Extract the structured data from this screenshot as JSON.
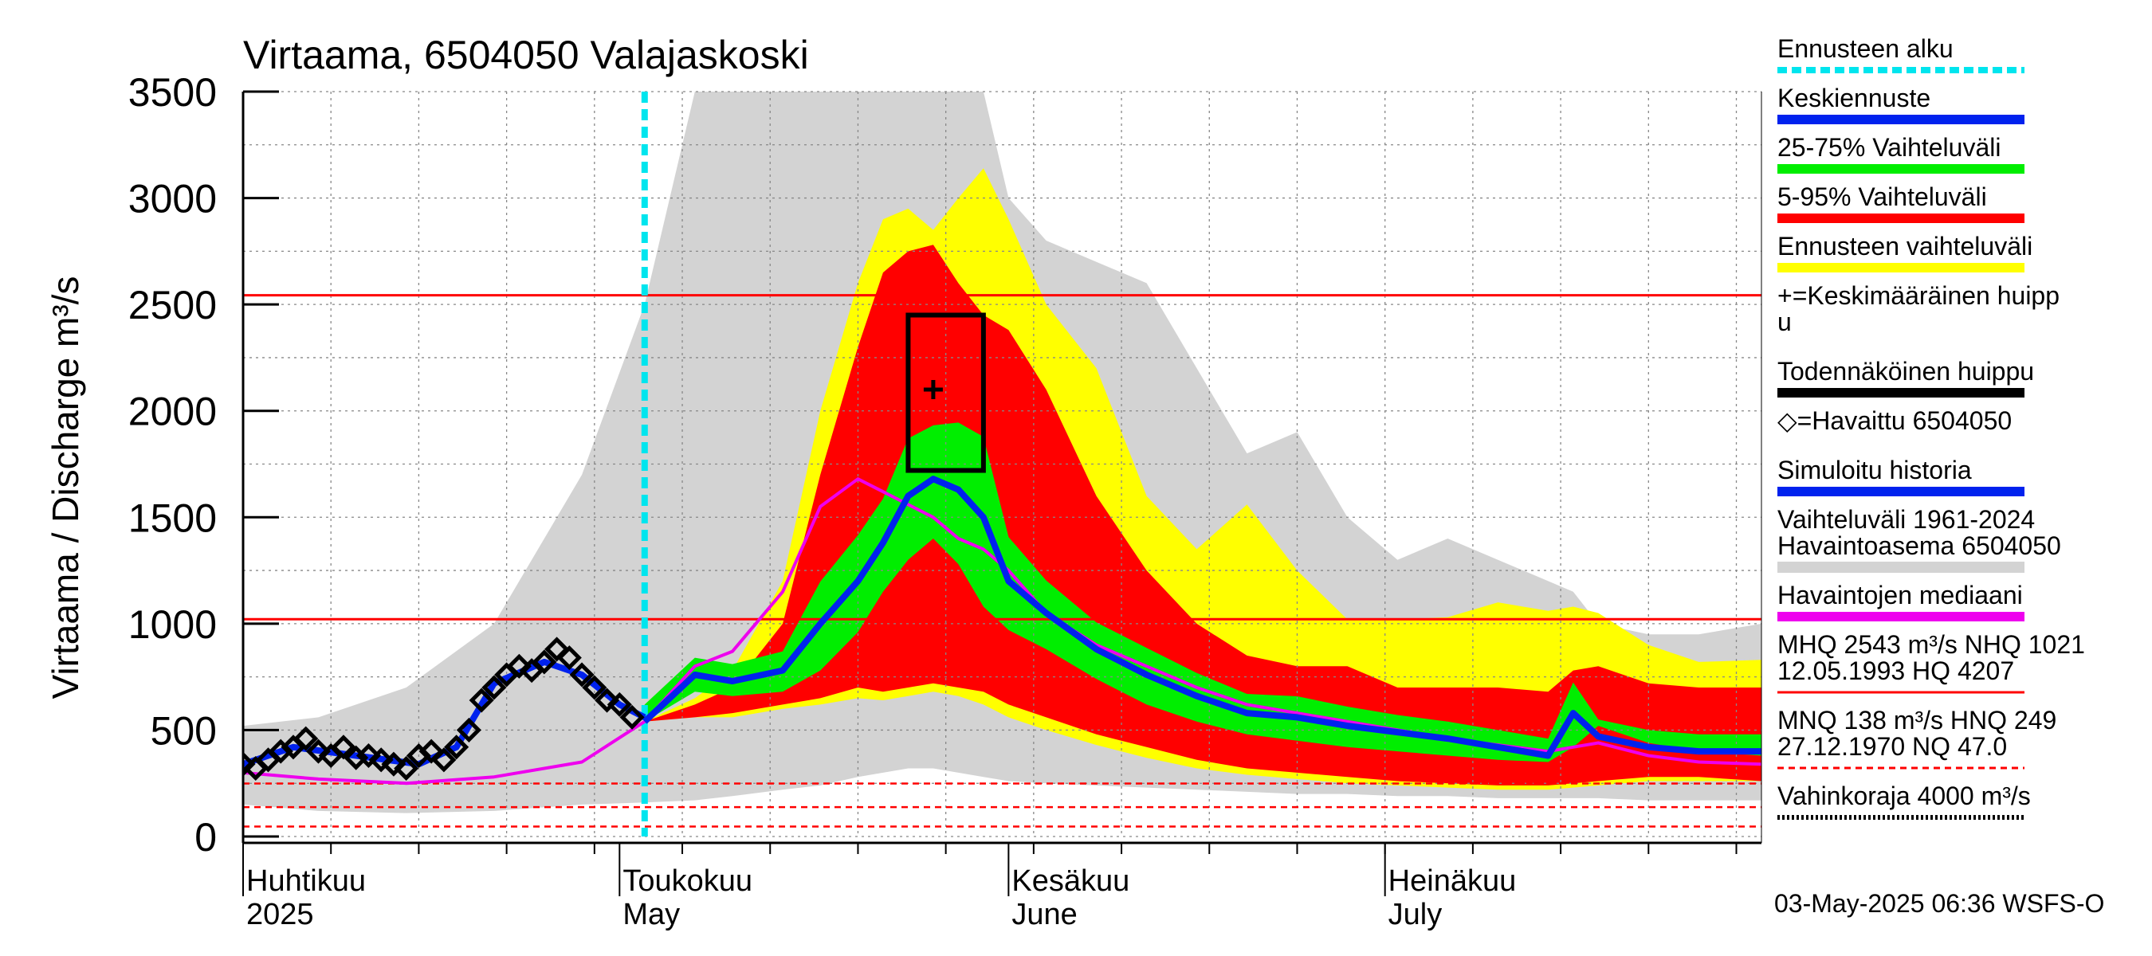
{
  "chart_data": {
    "type": "area",
    "title": "Virtaama, 6504050 Valajaskoski",
    "ylabel": "Virtaama / Discharge   m³/s",
    "ylim": [
      0,
      3500
    ],
    "yticks": [
      0,
      500,
      1000,
      1500,
      2000,
      2500,
      3000,
      3500
    ],
    "x_range": [
      "2025-04-01",
      "2025-07-31"
    ],
    "month_labels": [
      {
        "date": "2025-04-01",
        "fi": "Huhtikuu",
        "en": "2025"
      },
      {
        "date": "2025-05-01",
        "fi": "Toukokuu",
        "en": "May"
      },
      {
        "date": "2025-06-01",
        "fi": "Kesäkuu",
        "en": "June"
      },
      {
        "date": "2025-07-01",
        "fi": "Heinäkuu",
        "en": "July"
      }
    ],
    "grid": true,
    "forecast_start": "2025-05-03",
    "reference_lines": [
      {
        "name": "MHQ",
        "value": 2543,
        "color": "#ff0000",
        "style": "solid"
      },
      {
        "name": "NHQ",
        "value": 1021,
        "color": "#ff0000",
        "style": "solid"
      },
      {
        "name": "HNQ",
        "value": 249,
        "color": "#ff0000",
        "style": "dashed"
      },
      {
        "name": "MNQ",
        "value": 138,
        "color": "#ff0000",
        "style": "dashed"
      },
      {
        "name": "NQ",
        "value": 47,
        "color": "#ff0000",
        "style": "dashed"
      }
    ],
    "probable_peak_box": {
      "date_from": "2025-05-24",
      "date_to": "2025-05-30",
      "low": 1720,
      "high": 2450
    },
    "mean_peak": {
      "date": "2025-05-26",
      "value": 2100
    },
    "x": [
      "2025-04-01",
      "2025-04-07",
      "2025-04-14",
      "2025-04-21",
      "2025-04-28",
      "2025-05-03",
      "2025-05-07",
      "2025-05-10",
      "2025-05-14",
      "2025-05-17",
      "2025-05-20",
      "2025-05-22",
      "2025-05-24",
      "2025-05-26",
      "2025-05-28",
      "2025-05-30",
      "2025-06-01",
      "2025-06-04",
      "2025-06-08",
      "2025-06-12",
      "2025-06-16",
      "2025-06-20",
      "2025-06-24",
      "2025-06-28",
      "2025-07-02",
      "2025-07-06",
      "2025-07-10",
      "2025-07-14",
      "2025-07-16",
      "2025-07-18",
      "2025-07-22",
      "2025-07-26",
      "2025-07-31"
    ],
    "series": [
      {
        "name": "Vaihteluväli 1961-2024 Havaintoasema 6504050",
        "color": "#d3d3d3",
        "role": "band",
        "low": [
          150,
          120,
          110,
          120,
          150,
          160,
          170,
          190,
          220,
          240,
          280,
          300,
          320,
          320,
          300,
          280,
          260,
          250,
          240,
          230,
          220,
          210,
          200,
          200,
          190,
          190,
          180,
          180,
          180,
          180,
          170,
          170,
          170
        ],
        "high": [
          520,
          560,
          700,
          1000,
          1700,
          2500,
          3500,
          3500,
          3500,
          3500,
          3500,
          3500,
          3500,
          3500,
          3500,
          3500,
          3000,
          2800,
          2700,
          2600,
          2200,
          1800,
          1900,
          1500,
          1300,
          1400,
          1300,
          1200,
          1150,
          1000,
          950,
          950,
          1000
        ]
      },
      {
        "name": "Ennusteen vaihteluväli",
        "color": "#ffff00",
        "role": "band",
        "low": [
          null,
          null,
          null,
          null,
          null,
          540,
          560,
          560,
          600,
          620,
          650,
          640,
          660,
          680,
          660,
          620,
          560,
          500,
          430,
          370,
          320,
          290,
          270,
          250,
          240,
          230,
          220,
          220,
          230,
          240,
          260,
          260,
          260
        ],
        "high": [
          null,
          null,
          null,
          null,
          null,
          540,
          650,
          780,
          1200,
          2000,
          2600,
          2900,
          2950,
          2850,
          3000,
          3140,
          2900,
          2500,
          2200,
          1600,
          1350,
          1560,
          1250,
          1020,
          1020,
          1030,
          1100,
          1060,
          1080,
          1050,
          900,
          820,
          830
        ]
      },
      {
        "name": "5-95% Vaihteluväli",
        "color": "#ff0000",
        "role": "band",
        "low": [
          null,
          null,
          null,
          null,
          null,
          540,
          560,
          580,
          620,
          650,
          700,
          680,
          700,
          720,
          700,
          680,
          620,
          560,
          480,
          420,
          360,
          320,
          300,
          280,
          260,
          250,
          240,
          240,
          250,
          260,
          280,
          280,
          260
        ],
        "high": [
          null,
          null,
          null,
          null,
          null,
          540,
          620,
          700,
          1000,
          1700,
          2300,
          2650,
          2750,
          2780,
          2600,
          2450,
          2380,
          2100,
          1600,
          1250,
          1000,
          850,
          800,
          800,
          700,
          700,
          700,
          680,
          780,
          800,
          720,
          700,
          700
        ]
      },
      {
        "name": "25-75% Vaihteluväli",
        "color": "#00ee00",
        "role": "band",
        "low": [
          null,
          null,
          null,
          null,
          null,
          540,
          680,
          660,
          680,
          780,
          960,
          1150,
          1300,
          1400,
          1280,
          1080,
          970,
          880,
          740,
          620,
          540,
          480,
          450,
          420,
          400,
          380,
          360,
          350,
          420,
          520,
          440,
          400,
          380
        ]
      },
      {
        "name": "Keskiennuste",
        "color": "#0022ee",
        "role": "line",
        "values": [
          null,
          null,
          null,
          null,
          null,
          540,
          760,
          730,
          780,
          1000,
          1200,
          1380,
          1600,
          1680,
          1630,
          1500,
          1200,
          1050,
          880,
          760,
          660,
          580,
          560,
          520,
          490,
          460,
          420,
          380,
          580,
          470,
          420,
          400,
          400
        ]
      },
      {
        "name": "Havaintojen mediaani",
        "color": "#ee00ee",
        "role": "line",
        "values": [
          300,
          270,
          250,
          280,
          350,
          540,
          800,
          870,
          1150,
          1550,
          1680,
          1620,
          1560,
          1500,
          1400,
          1350,
          1250,
          1050,
          900,
          800,
          700,
          620,
          580,
          540,
          500,
          460,
          430,
          400,
          420,
          440,
          380,
          350,
          340
        ]
      },
      {
        "name": "Havaittu 6504050",
        "color": "#000000",
        "role": "markers",
        "values": [
          340,
          400,
          380,
          850,
          760,
          560,
          null,
          null,
          null,
          null,
          null,
          null,
          null,
          null,
          null,
          null,
          null,
          null,
          null,
          null,
          null,
          null,
          null,
          null,
          null,
          null,
          null,
          null,
          null,
          null,
          null,
          null,
          null
        ]
      }
    ],
    "observed_points": {
      "x": [
        "2025-04-01",
        "2025-04-02",
        "2025-04-03",
        "2025-04-04",
        "2025-04-05",
        "2025-04-06",
        "2025-04-07",
        "2025-04-08",
        "2025-04-09",
        "2025-04-10",
        "2025-04-11",
        "2025-04-12",
        "2025-04-13",
        "2025-04-14",
        "2025-04-15",
        "2025-04-16",
        "2025-04-17",
        "2025-04-18",
        "2025-04-19",
        "2025-04-20",
        "2025-04-21",
        "2025-04-22",
        "2025-04-23",
        "2025-04-24",
        "2025-04-25",
        "2025-04-26",
        "2025-04-27",
        "2025-04-28",
        "2025-04-29",
        "2025-04-30",
        "2025-05-01",
        "2025-05-02"
      ],
      "values": [
        340,
        320,
        360,
        400,
        420,
        460,
        400,
        380,
        420,
        370,
        380,
        360,
        340,
        320,
        380,
        400,
        360,
        420,
        500,
        640,
        700,
        760,
        800,
        780,
        820,
        880,
        840,
        760,
        700,
        640,
        620,
        560
      ]
    },
    "simulated_history": {
      "x": [
        "2025-04-01",
        "2025-04-05",
        "2025-04-10",
        "2025-04-15",
        "2025-04-18",
        "2025-04-21",
        "2025-04-25",
        "2025-04-28",
        "2025-05-01",
        "2025-05-03"
      ],
      "values": [
        340,
        420,
        380,
        340,
        420,
        720,
        820,
        760,
        620,
        560
      ]
    }
  },
  "legend": [
    {
      "label": "Ennusteen alku",
      "color": "#00e5ee",
      "style": "dotted"
    },
    {
      "label": "Keskiennuste",
      "color": "#0022ee",
      "style": "solid"
    },
    {
      "label": "25-75% Vaihteluväli",
      "color": "#00ee00",
      "style": "solid"
    },
    {
      "label": "5-95% Vaihteluväli",
      "color": "#ff0000",
      "style": "solid"
    },
    {
      "label": "Ennusteen vaihteluväli",
      "color": "#ffff00",
      "style": "solid"
    },
    {
      "label": "+=Keskimääräinen huipp",
      "label2": "u",
      "color": "",
      "style": "none"
    },
    {
      "label": "Todennäköinen huippu",
      "color": "#000000",
      "style": "solid"
    },
    {
      "label": "◇=Havaittu 6504050",
      "color": "",
      "style": "none"
    },
    {
      "label": "Simuloitu historia",
      "color": "#0022ee",
      "style": "solid"
    },
    {
      "label": "Vaihteluväli 1961-2024",
      "label2": " Havaintoasema 6504050",
      "color": "#d3d3d3",
      "style": "solid"
    },
    {
      "label": "Havaintojen mediaani",
      "color": "#ee00ee",
      "style": "solid"
    },
    {
      "label": "MHQ 2543 m³/s NHQ 1021",
      "label2": "12.05.1993 HQ 4207",
      "color": "#ff0000",
      "style": "thin"
    },
    {
      "label": "MNQ  138 m³/s HNQ  249",
      "label2": "27.12.1970 NQ 47.0",
      "color": "#ff0000",
      "style": "dashed"
    },
    {
      "label": "Vahinkoraja 4000 m³/s",
      "color": "#000000",
      "style": "dotted"
    }
  ],
  "timestamp": "03-May-2025 06:36 WSFS-O"
}
